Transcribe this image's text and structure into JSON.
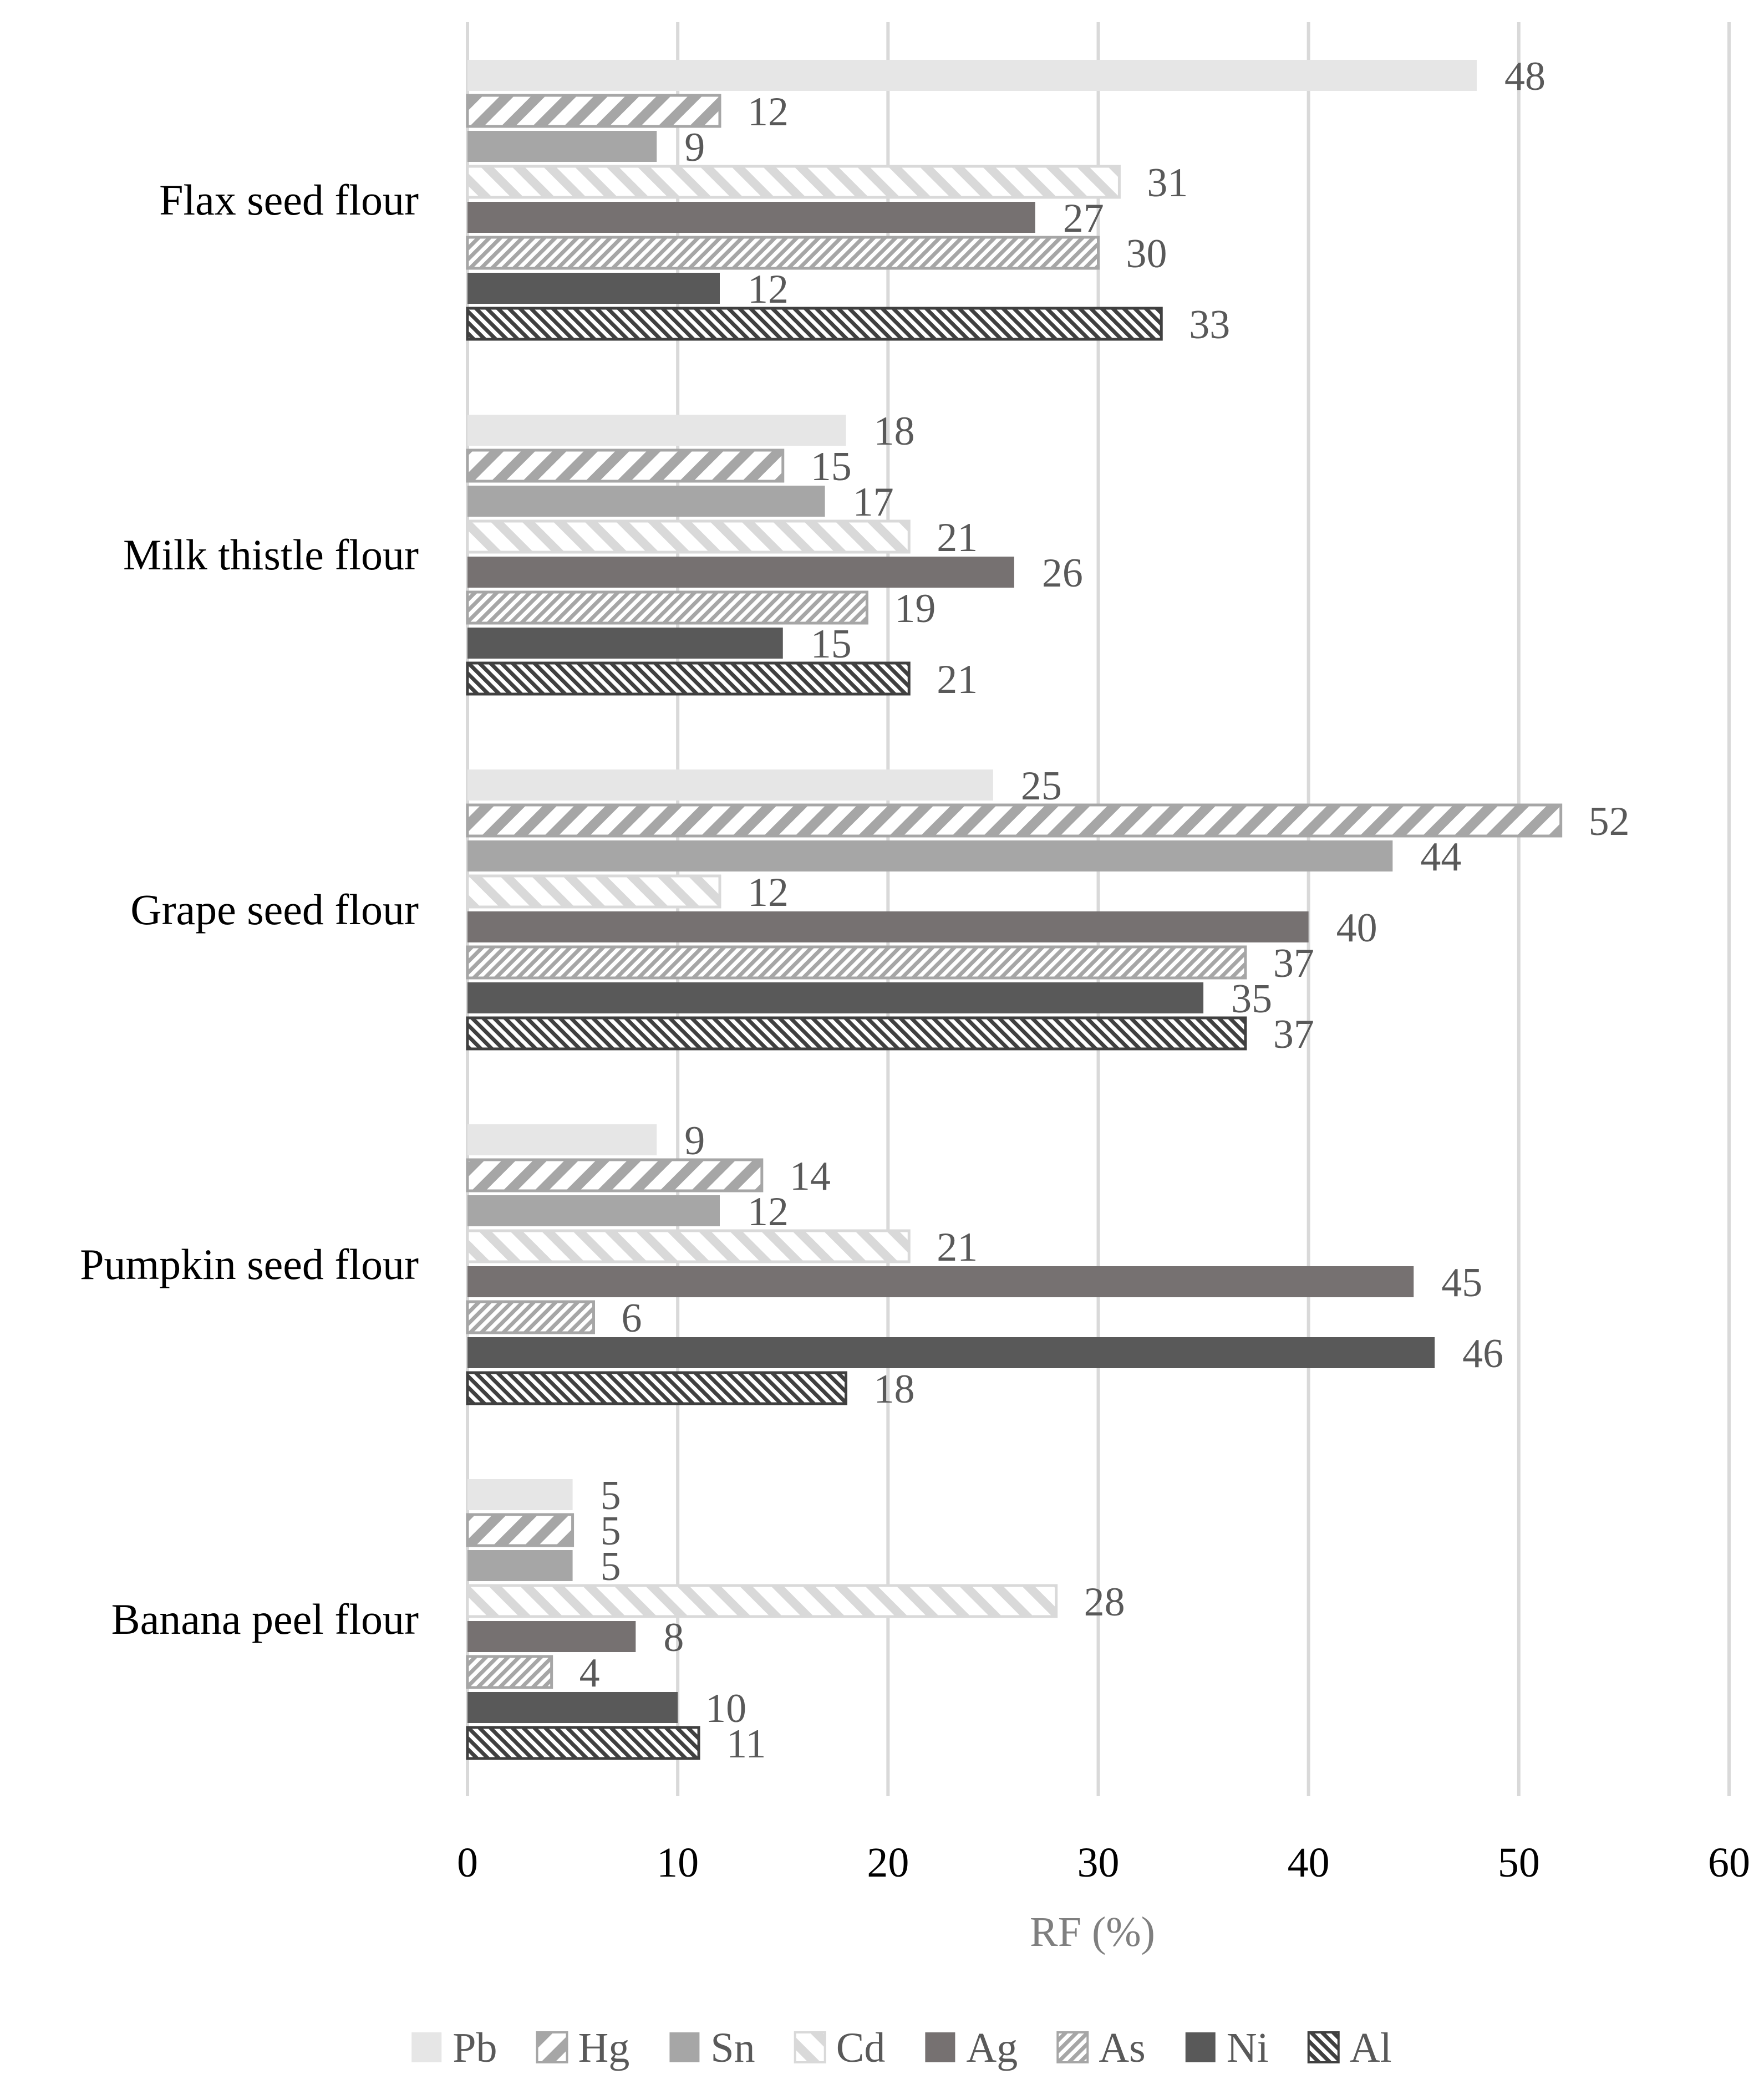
{
  "chart_data": {
    "type": "bar",
    "orientation": "horizontal",
    "title": "",
    "xlabel": "RF (%)",
    "ylabel": "",
    "xlim": [
      0,
      60
    ],
    "xticks": [
      0,
      10,
      20,
      30,
      40,
      50,
      60
    ],
    "xtick_labels": [
      "0",
      "10",
      "20",
      "30",
      "40",
      "50",
      "60"
    ],
    "grid": "vertical",
    "legend_position": "bottom",
    "categories": [
      "Flax seed flour",
      "Milk thistle flour",
      "Grape seed flour",
      "Pumpkin seed flour",
      "Banana peel flour"
    ],
    "series": [
      {
        "name": "Pb",
        "values": [
          48,
          18,
          25,
          9,
          5
        ],
        "color": "#e6e6e6",
        "pattern": "solid"
      },
      {
        "name": "Hg",
        "values": [
          12,
          15,
          52,
          14,
          5
        ],
        "color": "#a6a6a6",
        "pattern": "wide-diagonal-down"
      },
      {
        "name": "Sn",
        "values": [
          9,
          17,
          44,
          12,
          5
        ],
        "color": "#a6a6a6",
        "pattern": "solid"
      },
      {
        "name": "Cd",
        "values": [
          31,
          21,
          12,
          21,
          28
        ],
        "color": "#d9d9d9",
        "pattern": "wide-diagonal-up"
      },
      {
        "name": "Ag",
        "values": [
          27,
          26,
          40,
          45,
          8
        ],
        "color": "#767171",
        "pattern": "solid"
      },
      {
        "name": "As",
        "values": [
          30,
          19,
          37,
          6,
          4
        ],
        "color": "#a6a6a6",
        "pattern": "dense-diagonal-down"
      },
      {
        "name": "Ni",
        "values": [
          12,
          15,
          35,
          46,
          10
        ],
        "color": "#595959",
        "pattern": "solid"
      },
      {
        "name": "Al",
        "values": [
          33,
          21,
          37,
          18,
          11
        ],
        "color": "#404040",
        "pattern": "dense-diagonal-up"
      }
    ]
  }
}
